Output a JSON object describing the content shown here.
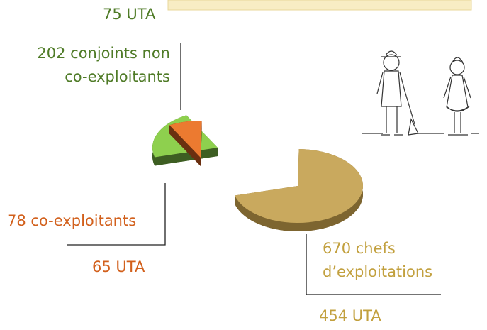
{
  "chart_data": {
    "type": "pie",
    "categories": [
      [
        "670 chefs",
        "d’exploitations"
      ],
      [
        "202 conjoints non",
        "co-exploitants"
      ],
      [
        "78 co-exploitants"
      ]
    ],
    "values": [
      670,
      202,
      78
    ],
    "colors": [
      "#c9a95e",
      "#8ed04e",
      "#ec7a30"
    ],
    "side_colors": [
      "#7d6530",
      "#3d5e22",
      "#6a2f10"
    ],
    "label_colors": [
      "#c2a03e",
      "#4f7b27",
      "#d2601c"
    ],
    "annotations": [
      "454 UTA",
      "75 UTA",
      "65 UTA"
    ]
  }
}
